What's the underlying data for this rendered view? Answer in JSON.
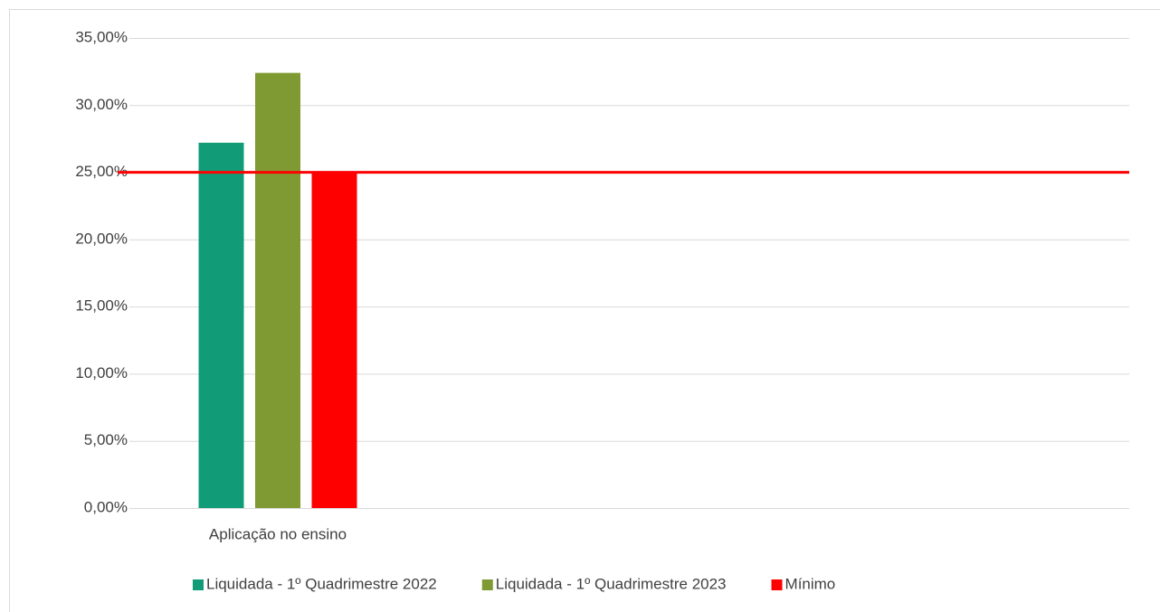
{
  "chart_data": {
    "type": "bar",
    "categories": [
      "Aplicação no ensino"
    ],
    "series": [
      {
        "name": "Liquidada - 1º Quadrimestre 2022",
        "color": "#119b77",
        "values": [
          27.2
        ]
      },
      {
        "name": "Liquidada - 1º Quadrimestre 2023",
        "color": "#7f9a33",
        "values": [
          32.4
        ]
      },
      {
        "name": "Mínimo",
        "color": "#ff0000",
        "values": [
          25
        ]
      }
    ],
    "reference_line": {
      "value": 25,
      "color": "#ff0000"
    },
    "ylim": [
      0,
      35
    ],
    "yticks": [
      {
        "value": 0,
        "label": "0,00%"
      },
      {
        "value": 5,
        "label": "5,00%"
      },
      {
        "value": 10,
        "label": "10,00%"
      },
      {
        "value": 15,
        "label": "15,00%"
      },
      {
        "value": 20,
        "label": "20,00%"
      },
      {
        "value": 25,
        "label": "25,00%"
      },
      {
        "value": 30,
        "label": "30,00%"
      },
      {
        "value": 35,
        "label": "35,00%"
      }
    ],
    "grid": true,
    "legend": "bottom"
  }
}
